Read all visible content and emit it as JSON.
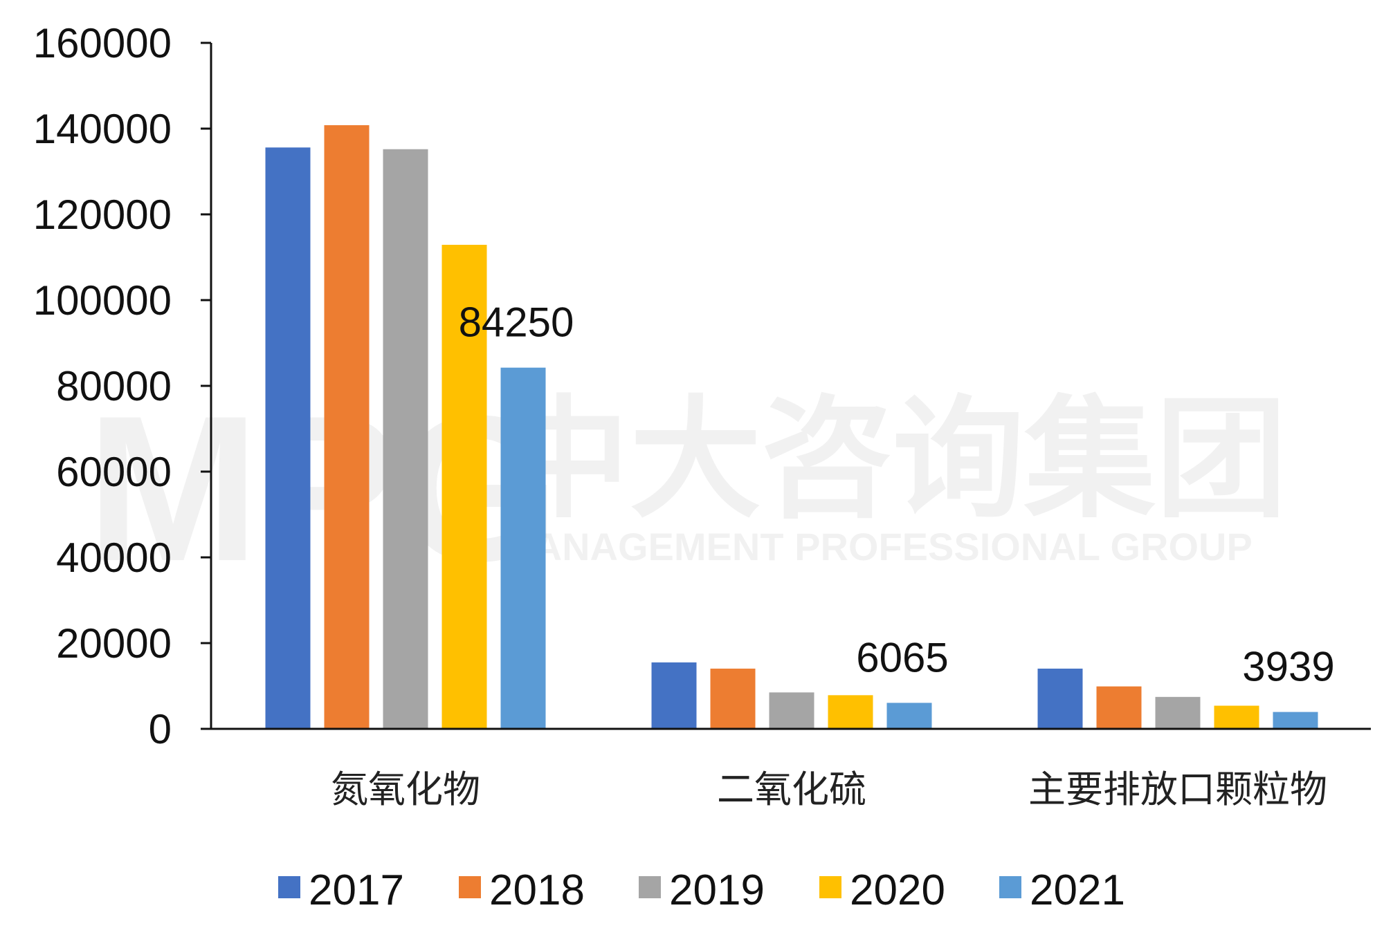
{
  "chart_data": {
    "type": "bar",
    "categories": [
      "氮氧化物",
      "二氧化硫",
      "主要排放口颗粒物"
    ],
    "series": [
      {
        "name": "2017",
        "color": "#4472C4",
        "values": [
          135600,
          15500,
          14050
        ]
      },
      {
        "name": "2018",
        "color": "#ED7D31",
        "values": [
          140800,
          14050,
          9900
        ]
      },
      {
        "name": "2019",
        "color": "#A5A5A5",
        "values": [
          135200,
          8500,
          7450
        ]
      },
      {
        "name": "2020",
        "color": "#FFC000",
        "values": [
          112900,
          7850,
          5400
        ]
      },
      {
        "name": "2021",
        "color": "#5B9BD5",
        "values": [
          84250,
          6065,
          3939
        ]
      }
    ],
    "data_labels": [
      {
        "series": "2021",
        "category": "氮氧化物",
        "text": "84250"
      },
      {
        "series": "2021",
        "category": "二氧化硫",
        "text": "6065"
      },
      {
        "series": "2021",
        "category": "主要排放口颗粒物",
        "text": "3939"
      }
    ],
    "yticks": [
      "0",
      "20000",
      "40000",
      "60000",
      "80000",
      "100000",
      "120000",
      "140000",
      "160000"
    ],
    "ylim": [
      0,
      160000
    ],
    "grid": false,
    "legend_position": "bottom",
    "title": "",
    "xlabel": "",
    "ylabel": ""
  },
  "watermark": {
    "logo": "MPG",
    "name": "中大咨询集团",
    "subtitle": "MANAGEMENT PROFESSIONAL GROUP"
  }
}
